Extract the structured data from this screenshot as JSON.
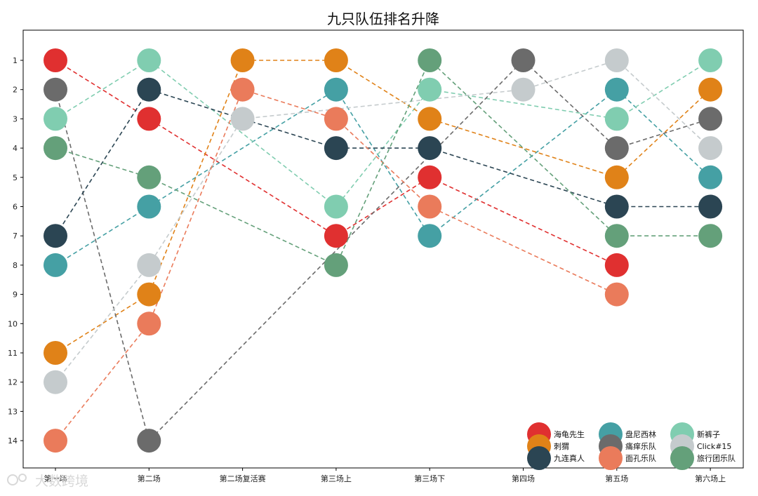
{
  "chart_data": {
    "type": "line",
    "title": "九只队伍排名升降",
    "xlabel": "",
    "ylabel": "",
    "categories": [
      "第一场",
      "第二场",
      "第二场复活赛",
      "第三场上",
      "第三场下",
      "第四场",
      "第五场",
      "第六场上"
    ],
    "ylim": [
      14.5,
      0
    ],
    "yticks": [
      1,
      2,
      3,
      4,
      5,
      6,
      7,
      8,
      9,
      10,
      11,
      12,
      13,
      14
    ],
    "y_inverted": true,
    "grid": false,
    "legend_position": "lower-right",
    "legend_columns": 3,
    "series": [
      {
        "name": "海龟先生",
        "color": "#e03030",
        "values": [
          1,
          3,
          null,
          7,
          5,
          null,
          8,
          null
        ]
      },
      {
        "name": "盘尼西林",
        "color": "#45a0a4",
        "values": [
          8,
          6,
          null,
          2,
          7,
          null,
          2,
          5
        ]
      },
      {
        "name": "新裤子",
        "color": "#80cdb0",
        "values": [
          3,
          1,
          null,
          6,
          2,
          null,
          3,
          1
        ]
      },
      {
        "name": "刺猬",
        "color": "#e08218",
        "values": [
          11,
          9,
          1,
          1,
          3,
          null,
          5,
          2
        ]
      },
      {
        "name": "痛痒乐队",
        "color": "#6b6b6b",
        "values": [
          2,
          14,
          null,
          null,
          null,
          1,
          4,
          3
        ]
      },
      {
        "name": "Click#15",
        "color": "#c5cbcd",
        "values": [
          12,
          8,
          3,
          null,
          null,
          2,
          1,
          4
        ]
      },
      {
        "name": "九连真人",
        "color": "#2b4553",
        "values": [
          7,
          2,
          null,
          4,
          4,
          null,
          6,
          6
        ]
      },
      {
        "name": "面孔乐队",
        "color": "#ea7b5b",
        "values": [
          14,
          10,
          2,
          3,
          6,
          null,
          9,
          null
        ]
      },
      {
        "name": "旅行团乐队",
        "color": "#64a07a",
        "values": [
          4,
          5,
          null,
          8,
          1,
          null,
          7,
          7
        ]
      }
    ]
  },
  "watermark": {
    "text": "大数跨境"
  }
}
